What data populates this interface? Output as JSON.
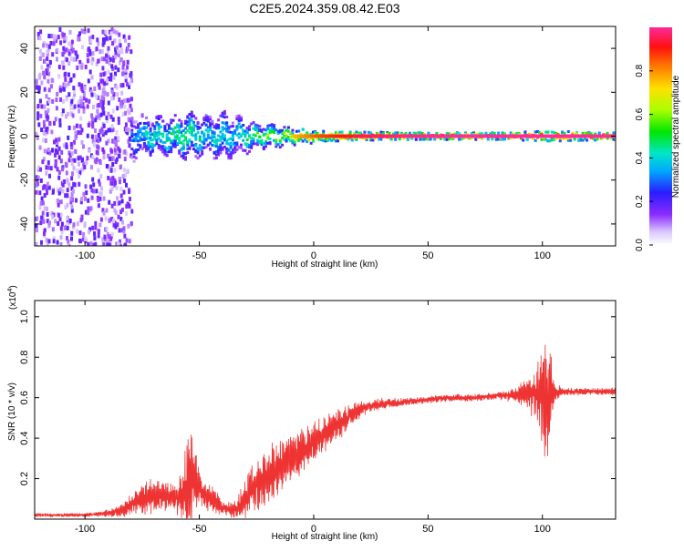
{
  "title": "C2E5.2024.359.08.42.E03",
  "chart_data": [
    {
      "type": "heatmap",
      "xlabel": "Height of straight line (km)",
      "ylabel": "Frequency (Hz)",
      "xlim": [
        -122,
        132
      ],
      "ylim": [
        -50,
        50
      ],
      "xticks": [
        -100,
        -50,
        0,
        50,
        100
      ],
      "yticks": [
        -40,
        -20,
        0,
        20,
        40
      ],
      "ridge": {
        "frequency": 0,
        "x": [
          -122,
          -110,
          -100,
          -90,
          -80,
          -75,
          -70,
          -65,
          -60,
          -55,
          -50,
          -45,
          -40,
          -35,
          -30,
          -25,
          -20,
          -15,
          -10,
          -5,
          0,
          10,
          20,
          50,
          85,
          100,
          132
        ],
        "spread": [
          30,
          30,
          30,
          30,
          6,
          5,
          5,
          5,
          5,
          6,
          5,
          5,
          6,
          5,
          4,
          3,
          3,
          2.5,
          2,
          2,
          1.5,
          1.5,
          1.2,
          1,
          1,
          1.5,
          1
        ],
        "amplitude": [
          0.2,
          0.2,
          0.2,
          0.2,
          0.3,
          0.4,
          0.45,
          0.45,
          0.5,
          0.5,
          0.45,
          0.4,
          0.45,
          0.4,
          0.5,
          0.55,
          0.6,
          0.65,
          0.75,
          0.8,
          0.85,
          0.9,
          0.95,
          1,
          1,
          1,
          1
        ]
      },
      "colorbar": {
        "label": "Normalized spectral amplitude",
        "ticks": [
          "0.0",
          "0.2",
          "0.4",
          "0.6",
          "0.8"
        ],
        "range": [
          0,
          1
        ]
      },
      "grid": false,
      "legend": "colorbar right"
    },
    {
      "type": "line",
      "xlabel": "Height of straight line (km)",
      "ylabel": "SNR (10 * v/v)",
      "multiplier_label": "(x10",
      "multiplier_exp": "4",
      "multiplier_close": ")",
      "xlim": [
        -122,
        132
      ],
      "ylim": [
        0,
        1.08
      ],
      "xticks": [
        -100,
        -50,
        0,
        50,
        100
      ],
      "yticks": [
        0.2,
        0.4,
        0.6,
        0.8,
        1.0
      ],
      "color": "#ee3333",
      "envelope": {
        "x": [
          -122,
          -100,
          -90,
          -85,
          -80,
          -75,
          -70,
          -65,
          -60,
          -57,
          -55,
          -52,
          -50,
          -45,
          -40,
          -35,
          -30,
          -25,
          -20,
          -15,
          -10,
          -5,
          0,
          5,
          10,
          15,
          20,
          25,
          30,
          40,
          50,
          60,
          70,
          80,
          85,
          90,
          95,
          98,
          100,
          102,
          104,
          106,
          110,
          120,
          132
        ],
        "center": [
          0.02,
          0.02,
          0.03,
          0.04,
          0.07,
          0.1,
          0.12,
          0.11,
          0.1,
          0.12,
          0.16,
          0.2,
          0.14,
          0.1,
          0.06,
          0.04,
          0.1,
          0.17,
          0.22,
          0.25,
          0.3,
          0.33,
          0.38,
          0.43,
          0.46,
          0.5,
          0.54,
          0.56,
          0.57,
          0.58,
          0.59,
          0.6,
          0.6,
          0.61,
          0.61,
          0.62,
          0.62,
          0.6,
          0.6,
          0.6,
          0.62,
          0.63,
          0.63,
          0.63,
          0.63
        ],
        "amplitude": [
          0.01,
          0.01,
          0.02,
          0.03,
          0.06,
          0.1,
          0.09,
          0.08,
          0.08,
          0.18,
          0.28,
          0.22,
          0.1,
          0.08,
          0.04,
          0.04,
          0.1,
          0.14,
          0.16,
          0.16,
          0.14,
          0.12,
          0.1,
          0.1,
          0.08,
          0.07,
          0.05,
          0.03,
          0.03,
          0.02,
          0.02,
          0.02,
          0.02,
          0.02,
          0.03,
          0.05,
          0.12,
          0.2,
          0.3,
          0.42,
          0.2,
          0.04,
          0.02,
          0.02,
          0.02
        ]
      },
      "grid": false
    }
  ]
}
